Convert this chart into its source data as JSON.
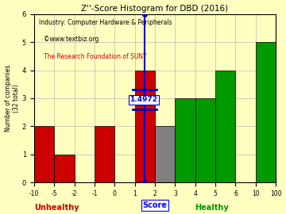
{
  "title": "Z''-Score Histogram for DBD (2016)",
  "subtitle1": "Industry: Computer Hardware & Peripherals",
  "watermark1": "©www.textbiz.org",
  "watermark2": "The Research Foundation of SUNY",
  "xlabel": "Score",
  "ylabel": "Number of companies\n(32 total)",
  "xlabel_unhealthy": "Unhealthy",
  "xlabel_healthy": "Healthy",
  "ylim": [
    0,
    6
  ],
  "yticks": [
    0,
    1,
    2,
    3,
    4,
    5,
    6
  ],
  "bin_labels": [
    "-10",
    "-5",
    "-2",
    "-1",
    "0",
    "1",
    "2",
    "3",
    "4",
    "5",
    "6",
    "10",
    "100"
  ],
  "bar_heights": [
    2,
    1,
    0,
    2,
    0,
    4,
    2,
    3,
    3,
    4,
    0,
    5
  ],
  "bar_colors": [
    "#cc0000",
    "#cc0000",
    "#ffffff",
    "#cc0000",
    "#ffffff",
    "#cc0000",
    "#808080",
    "#009900",
    "#009900",
    "#009900",
    "#ffffff",
    "#009900"
  ],
  "dbd_score_bin": 5.4972,
  "dbd_label": "1.4972",
  "marker_color": "#0000cc",
  "bg_color": "#ffffc0",
  "grid_color": "#aaaaaa",
  "title_color": "#000000",
  "subtitle_color": "#000000",
  "unhealthy_color": "#cc0000",
  "healthy_color": "#009900",
  "score_label_color": "#0000cc",
  "watermark_color1": "#000000",
  "watermark_color2": "#cc0000"
}
